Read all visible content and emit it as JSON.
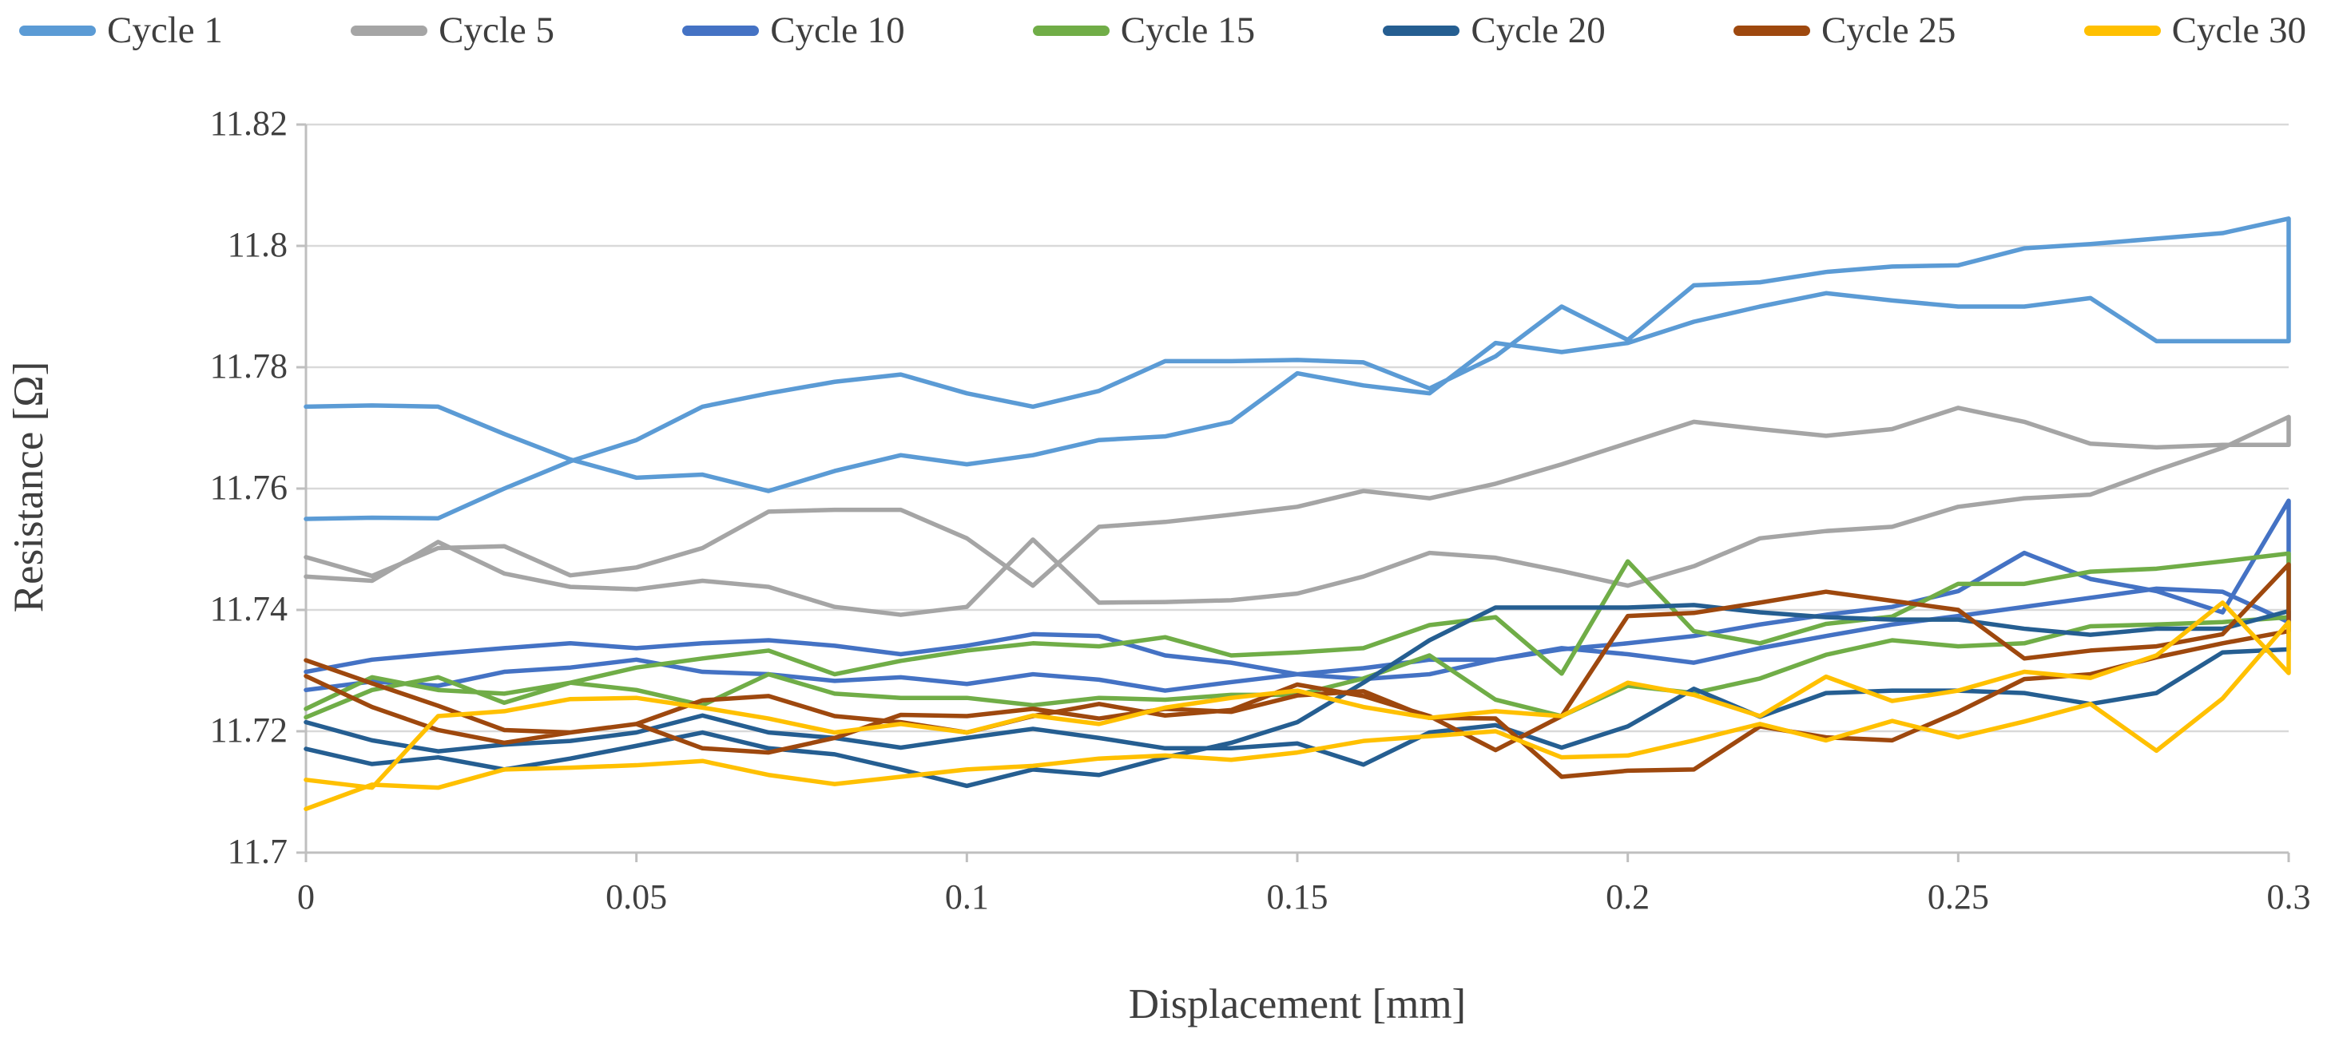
{
  "chart_data": {
    "type": "line",
    "title": "",
    "xlabel": "Displacement [mm]",
    "ylabel": "Resistance [Ω]",
    "xlim": [
      0,
      0.3
    ],
    "ylim": [
      11.7,
      11.82
    ],
    "grid": "horizontal",
    "legend_position": "top",
    "x_step": 0.01,
    "x_ticks": {
      "values": [
        0,
        0.05,
        0.1,
        0.15,
        0.2,
        0.25,
        0.3
      ],
      "labels": [
        "0",
        "0.05",
        "0.1",
        "0.15",
        "0.2",
        "0.25",
        "0.3"
      ]
    },
    "y_ticks": {
      "values": [
        11.82,
        11.8,
        11.78,
        11.76,
        11.74,
        11.72,
        11.7
      ],
      "labels": [
        "11.82",
        "11.8",
        "11.78",
        "11.76",
        "11.74",
        "11.72",
        "11.7"
      ]
    },
    "series_note": "Each cycle is a hysteresis loop: 'load' branch runs x=0 to 0.3 mm in 0.01 steps, 'unload' branch returns; branches join with a vertical step at x=0.3 and are open at x=0.",
    "series": [
      {
        "name": "Cycle 1",
        "color": "#5B9BD5",
        "load": [
          11.755,
          11.7552,
          11.7551,
          11.76,
          11.7645,
          11.768,
          11.7735,
          11.7757,
          11.7776,
          11.7788,
          11.7757,
          11.7735,
          11.7761,
          11.781,
          11.781,
          11.7812,
          11.7808,
          11.7765,
          11.7818,
          11.79,
          11.7845,
          11.7935,
          11.794,
          11.7957,
          11.7966,
          11.7968,
          11.7996,
          11.8003,
          11.8012,
          11.8021,
          11.8045
        ],
        "unload": [
          11.7735,
          11.7737,
          11.7735,
          11.769,
          11.7648,
          11.7618,
          11.7623,
          11.7596,
          11.7629,
          11.7655,
          11.764,
          11.7655,
          11.768,
          11.7686,
          11.771,
          11.779,
          11.777,
          11.7757,
          11.784,
          11.7825,
          11.784,
          11.7875,
          11.79,
          11.7922,
          11.791,
          11.79,
          11.79,
          11.7914,
          11.7843,
          11.7843,
          11.7843
        ]
      },
      {
        "name": "Cycle 5",
        "color": "#A5A5A5",
        "load": [
          11.7455,
          11.7448,
          11.7512,
          11.746,
          11.7438,
          11.7434,
          11.7448,
          11.7438,
          11.7405,
          11.7392,
          11.7405,
          11.7516,
          11.7412,
          11.7413,
          11.7416,
          11.7427,
          11.7455,
          11.7494,
          11.7486,
          11.7464,
          11.744,
          11.7472,
          11.7518,
          11.753,
          11.7537,
          11.757,
          11.7584,
          11.759,
          11.763,
          11.7667,
          11.7718
        ],
        "unload": [
          11.7487,
          11.7456,
          11.7502,
          11.7505,
          11.7457,
          11.747,
          11.7502,
          11.7562,
          11.7565,
          11.7565,
          11.7518,
          11.744,
          11.7537,
          11.7545,
          11.7557,
          11.757,
          11.7596,
          11.7584,
          11.7608,
          11.764,
          11.7675,
          11.771,
          11.7698,
          11.7687,
          11.7698,
          11.7733,
          11.771,
          11.7674,
          11.7668,
          11.7672,
          11.7672
        ]
      },
      {
        "name": "Cycle 10",
        "color": "#4472C4",
        "load": [
          11.7268,
          11.7282,
          11.7275,
          11.7298,
          11.7305,
          11.7318,
          11.7298,
          11.7294,
          11.7283,
          11.7289,
          11.7278,
          11.7294,
          11.7285,
          11.7267,
          11.7281,
          11.7294,
          11.7304,
          11.7318,
          11.7318,
          11.7335,
          11.7345,
          11.7357,
          11.7376,
          11.7392,
          11.7405,
          11.7431,
          11.7494,
          11.7451,
          11.7431,
          11.7396,
          11.758
        ],
        "unload": [
          11.7298,
          11.7318,
          11.7328,
          11.7337,
          11.7345,
          11.7337,
          11.7345,
          11.735,
          11.7341,
          11.7327,
          11.7341,
          11.736,
          11.7357,
          11.7325,
          11.7313,
          11.7294,
          11.7286,
          11.7294,
          11.7318,
          11.7337,
          11.7327,
          11.7313,
          11.7337,
          11.7357,
          11.7376,
          11.739,
          11.7405,
          11.742,
          11.7435,
          11.743,
          11.738
        ]
      },
      {
        "name": "Cycle 15",
        "color": "#70AD47",
        "load": [
          11.7223,
          11.7268,
          11.7289,
          11.7247,
          11.728,
          11.7305,
          11.732,
          11.7333,
          11.7294,
          11.7316,
          11.7333,
          11.7345,
          11.734,
          11.7355,
          11.7325,
          11.733,
          11.7337,
          11.7375,
          11.7388,
          11.7295,
          11.748,
          11.7365,
          11.7345,
          11.7377,
          11.7389,
          11.7443,
          11.7443,
          11.7463,
          11.7468,
          11.748,
          11.7493
        ],
        "unload": [
          11.7237,
          11.7289,
          11.7268,
          11.7262,
          11.728,
          11.7268,
          11.7243,
          11.7294,
          11.7262,
          11.7255,
          11.7255,
          11.7243,
          11.7255,
          11.7252,
          11.726,
          11.726,
          11.7287,
          11.7325,
          11.7252,
          11.7225,
          11.7275,
          11.7263,
          11.7287,
          11.7326,
          11.735,
          11.734,
          11.7345,
          11.7373,
          11.7376,
          11.738,
          11.7388
        ]
      },
      {
        "name": "Cycle 20",
        "color": "#255E91",
        "load": [
          11.7171,
          11.7146,
          11.7157,
          11.7137,
          11.7155,
          11.7176,
          11.7198,
          11.7172,
          11.7162,
          11.7137,
          11.711,
          11.7137,
          11.7128,
          11.7157,
          11.7181,
          11.7215,
          11.728,
          11.735,
          11.7404,
          11.7404,
          11.7404,
          11.7408,
          11.7396,
          11.7388,
          11.7384,
          11.7384,
          11.7369,
          11.7359,
          11.7369,
          11.7369,
          11.7398
        ],
        "unload": [
          11.7215,
          11.7185,
          11.7167,
          11.7178,
          11.7184,
          11.7198,
          11.7226,
          11.7198,
          11.7189,
          11.7173,
          11.7189,
          11.7204,
          11.7189,
          11.7172,
          11.7172,
          11.718,
          11.7145,
          11.7198,
          11.721,
          11.7173,
          11.7208,
          11.727,
          11.7224,
          11.7263,
          11.7267,
          11.7267,
          11.7263,
          11.7245,
          11.7263,
          11.733,
          11.7335
        ]
      },
      {
        "name": "Cycle 25",
        "color": "#9E480E",
        "load": [
          11.7291,
          11.724,
          11.7202,
          11.7181,
          11.7198,
          11.7212,
          11.7172,
          11.7165,
          11.7189,
          11.7227,
          11.7225,
          11.7237,
          11.7221,
          11.7237,
          11.7232,
          11.7259,
          11.7266,
          11.7222,
          11.7221,
          11.7125,
          11.7135,
          11.7137,
          11.7208,
          11.719,
          11.7185,
          11.7232,
          11.7286,
          11.7294,
          11.7322,
          11.7345,
          11.7365
        ],
        "unload": [
          11.7317,
          11.7279,
          11.7242,
          11.7202,
          11.7198,
          11.7212,
          11.7251,
          11.7258,
          11.7225,
          11.7215,
          11.7198,
          11.7225,
          11.7245,
          11.7226,
          11.7235,
          11.7277,
          11.7258,
          11.7225,
          11.7169,
          11.7225,
          11.739,
          11.7395,
          11.7412,
          11.743,
          11.7415,
          11.74,
          11.732,
          11.7333,
          11.734,
          11.736,
          11.7475
        ]
      },
      {
        "name": "Cycle 30",
        "color": "#FFC000",
        "load": [
          11.7072,
          11.7112,
          11.7107,
          11.7137,
          11.714,
          11.7144,
          11.7151,
          11.7128,
          11.7113,
          11.7125,
          11.7137,
          11.7143,
          11.7155,
          11.716,
          11.7153,
          11.7165,
          11.7184,
          11.7192,
          11.72,
          11.7157,
          11.716,
          11.7185,
          11.7212,
          11.7185,
          11.7217,
          11.719,
          11.7216,
          11.7245,
          11.7168,
          11.7254,
          11.738
        ],
        "unload": [
          11.712,
          11.7107,
          11.7225,
          11.7233,
          11.7253,
          11.7255,
          11.7239,
          11.7221,
          11.7198,
          11.7212,
          11.7198,
          11.7226,
          11.7212,
          11.7239,
          11.7255,
          11.7267,
          11.724,
          11.7222,
          11.7233,
          11.7225,
          11.728,
          11.726,
          11.7225,
          11.729,
          11.725,
          11.7267,
          11.7298,
          11.7288,
          11.7325,
          11.7412,
          11.7296
        ]
      }
    ],
    "style": {
      "gridline_color": "#D9D9D9",
      "axis_color": "#BFBFBF",
      "text_color": "#3f3f3f",
      "line_width": 5.5
    }
  }
}
